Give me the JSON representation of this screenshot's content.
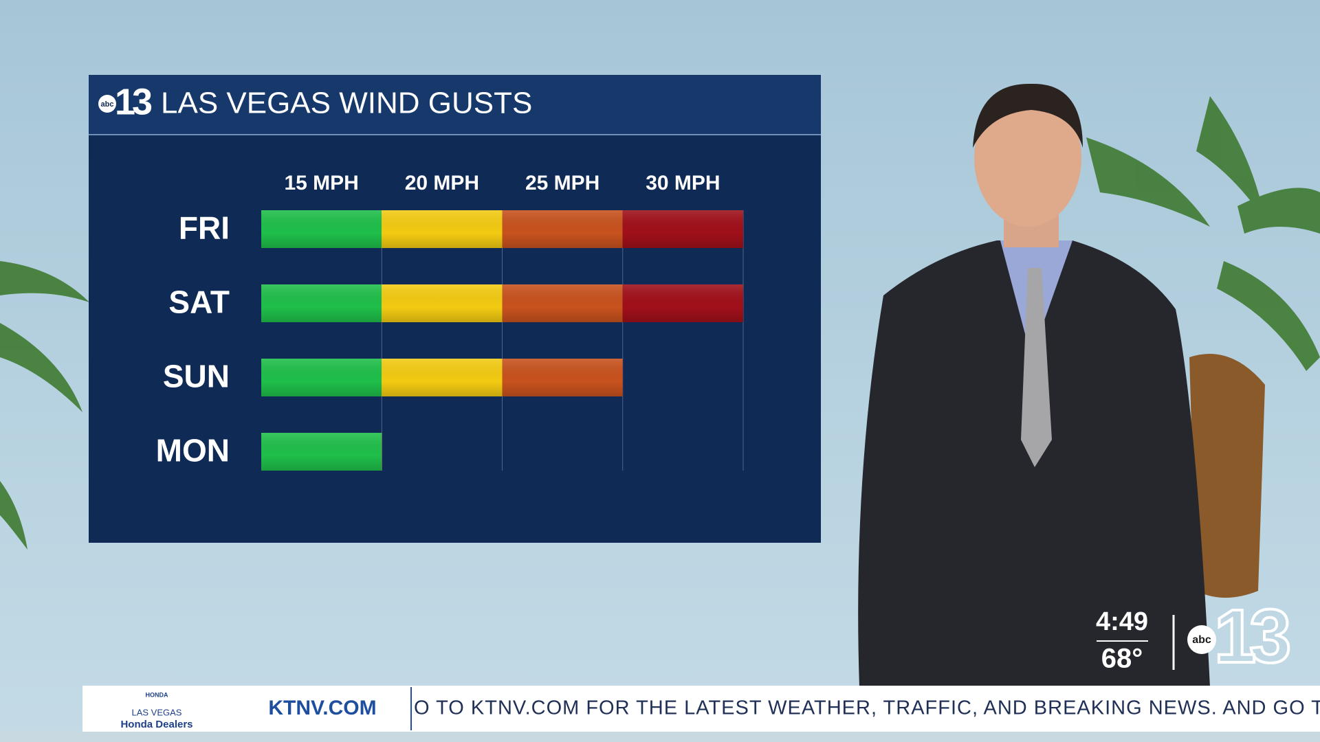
{
  "chart_data": {
    "type": "bar",
    "orientation": "horizontal",
    "title": "LAS VEGAS WIND GUSTS",
    "categories": [
      "FRI",
      "SAT",
      "SUN",
      "MON"
    ],
    "values": [
      30,
      30,
      25,
      15
    ],
    "xlim": [
      10,
      30
    ],
    "xticks": [
      {
        "value": 15,
        "label": "15 MPH"
      },
      {
        "value": 20,
        "label": "20 MPH"
      },
      {
        "value": 25,
        "label": "25 MPH"
      },
      {
        "value": 30,
        "label": "30 MPH"
      }
    ],
    "band_colors": [
      "#1fbf4a",
      "#f3cb12",
      "#c8521e",
      "#a0101a"
    ],
    "grid": true
  },
  "logo": {
    "network": "abc",
    "channel": "13"
  },
  "bug": {
    "time": "4:49",
    "temperature": "68°"
  },
  "sponsor": {
    "brand": "HONDA",
    "city": "LAS VEGAS",
    "dealers": "Honda Dealers"
  },
  "ticker": {
    "site": "KTNV.COM",
    "text": "O TO KTNV.COM FOR THE LATEST WEATHER, TRAFFIC, AND BREAKING NEWS. AND GO TO"
  }
}
